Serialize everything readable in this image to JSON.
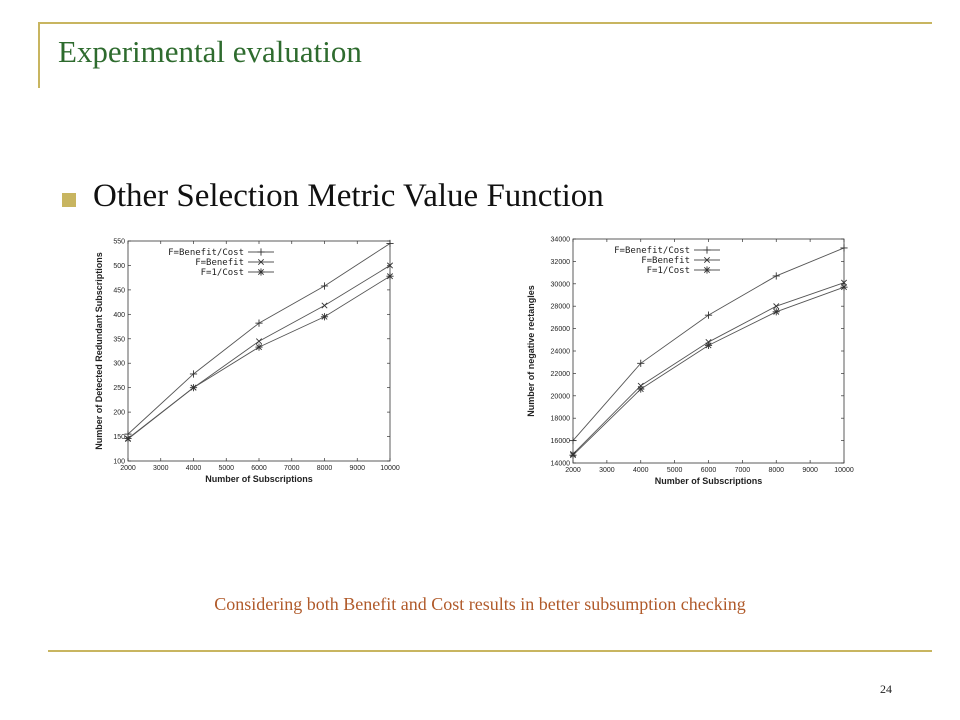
{
  "slide": {
    "title": "Experimental evaluation",
    "bullet": "Other Selection Metric Value Function",
    "caption": "Considering both Benefit and Cost results in better subsumption checking",
    "page_number": "24",
    "colors": {
      "accent_line": "#c8b560",
      "title": "#2e6b2e",
      "caption": "#b05a2a"
    }
  },
  "chart_data": [
    {
      "type": "line",
      "xlabel": "Number of Subscriptions",
      "ylabel": "Number of Detected Redundant Subscriptions",
      "xlim": [
        2000,
        10000
      ],
      "ylim": [
        100,
        550
      ],
      "xticks": [
        2000,
        3000,
        4000,
        5000,
        6000,
        7000,
        8000,
        9000,
        10000
      ],
      "yticks": [
        100,
        150,
        200,
        250,
        300,
        350,
        400,
        450,
        500,
        550
      ],
      "legend_position": "top-left",
      "grid": false,
      "x": [
        2000,
        4000,
        6000,
        8000,
        10000
      ],
      "series": [
        {
          "name": "F=Benefit/Cost",
          "marker": "plus",
          "values": [
            155,
            278,
            382,
            458,
            545
          ]
        },
        {
          "name": "F=Benefit",
          "marker": "x",
          "values": [
            145,
            250,
            345,
            418,
            500
          ]
        },
        {
          "name": "F=1/Cost",
          "marker": "star",
          "values": [
            146,
            250,
            333,
            395,
            478
          ]
        }
      ]
    },
    {
      "type": "line",
      "xlabel": "Number of Subscriptions",
      "ylabel": "Number of negative rectangles",
      "xlim": [
        2000,
        10000
      ],
      "ylim": [
        14000,
        34000
      ],
      "xticks": [
        2000,
        3000,
        4000,
        5000,
        6000,
        7000,
        8000,
        9000,
        10000
      ],
      "yticks": [
        14000,
        16000,
        18000,
        20000,
        22000,
        24000,
        26000,
        28000,
        30000,
        32000,
        34000
      ],
      "legend_position": "top-left",
      "grid": false,
      "x": [
        2000,
        4000,
        6000,
        8000,
        10000
      ],
      "series": [
        {
          "name": "F=Benefit/Cost",
          "marker": "plus",
          "values": [
            16000,
            22900,
            27200,
            30700,
            33200
          ]
        },
        {
          "name": "F=Benefit",
          "marker": "x",
          "values": [
            14800,
            20900,
            24800,
            28000,
            30100
          ]
        },
        {
          "name": "F=1/Cost",
          "marker": "star",
          "values": [
            14700,
            20600,
            24500,
            27500,
            29700
          ]
        }
      ]
    }
  ]
}
